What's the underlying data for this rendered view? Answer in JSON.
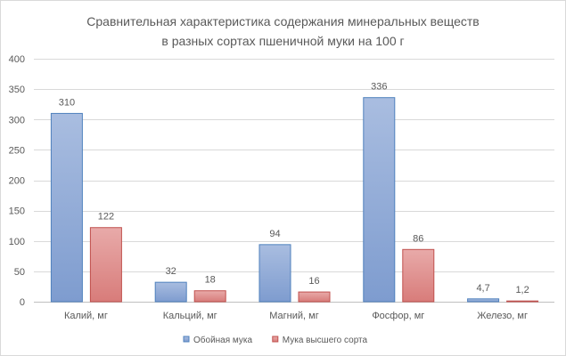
{
  "chart_data": {
    "type": "bar",
    "title_lines": [
      "Сравнительная характеристика  содержания минеральных веществ",
      "в разных сортах пшеничной муки на 100 г"
    ],
    "categories": [
      "Калий, мг",
      "Кальций, мг",
      "Магний, мг",
      "Фосфор, мг",
      "Железо, мг"
    ],
    "series": [
      {
        "name": "Обойная мука",
        "values": [
          310,
          32,
          94,
          336,
          4.7
        ],
        "labels": [
          "310",
          "32",
          "94",
          "336",
          "4,7"
        ],
        "color": "#a9bde0",
        "gradient_end": "#7e9ccf",
        "stroke": "#4f81bd"
      },
      {
        "name": "Мука высшего сорта",
        "values": [
          122,
          18,
          16,
          86,
          1.2
        ],
        "labels": [
          "122",
          "18",
          "16",
          "86",
          "1,2"
        ],
        "color": "#e8aaa9",
        "gradient_end": "#d87c7a",
        "stroke": "#c0504d"
      }
    ],
    "ylim": [
      0,
      400
    ],
    "yticks": [
      0,
      50,
      100,
      150,
      200,
      250,
      300,
      350,
      400
    ],
    "grid": true,
    "legend": "bottom"
  }
}
